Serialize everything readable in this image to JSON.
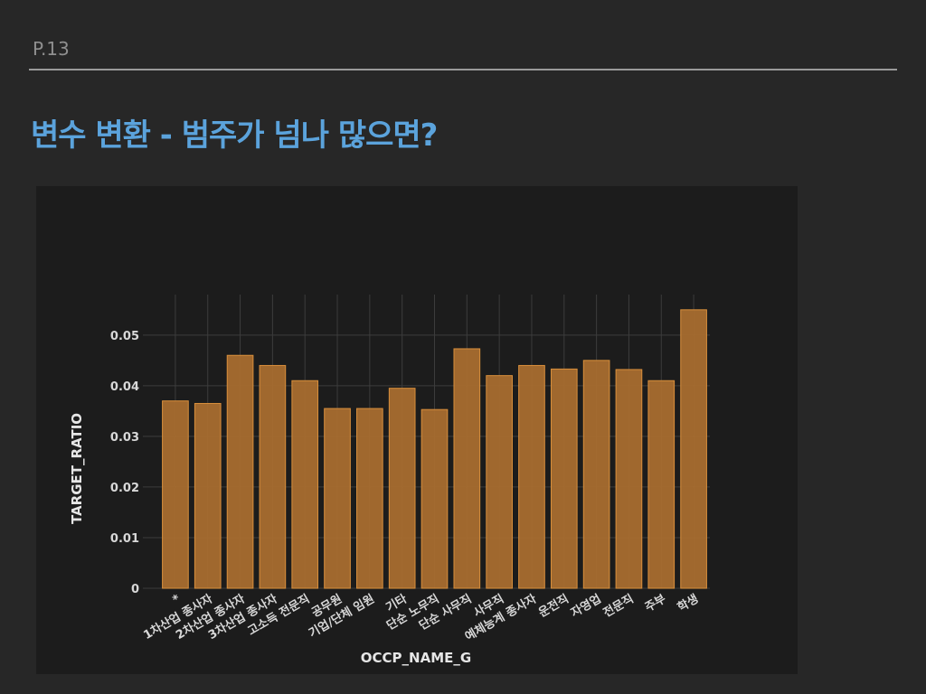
{
  "slide": {
    "page_number": "P.13",
    "title": "변수 변환 - 범주가 넘나 많으면?"
  },
  "chart_data": {
    "type": "bar",
    "xlabel": "OCCP_NAME_G",
    "ylabel": "TARGET_RATIO",
    "ylim": [
      0,
      0.058
    ],
    "yticks": [
      0,
      0.01,
      0.02,
      0.03,
      0.04,
      0.05
    ],
    "ytick_labels": [
      "0",
      "0.01",
      "0.02",
      "0.03",
      "0.04",
      "0.05"
    ],
    "grid": true,
    "categories": [
      "*",
      "1차산업 종사자",
      "2차산업 종사자",
      "3차산업 종사자",
      "고소득 전문직",
      "공무원",
      "기업/단체 임원",
      "기타",
      "단순 노무직",
      "단순 사무직",
      "사무직",
      "예체능계 종사자",
      "운전직",
      "자영업",
      "전문직",
      "주부",
      "학생"
    ],
    "values": [
      0.037,
      0.0365,
      0.046,
      0.044,
      0.041,
      0.0355,
      0.0355,
      0.0395,
      0.0353,
      0.0473,
      0.042,
      0.044,
      0.0433,
      0.045,
      0.0432,
      0.041,
      0.055
    ],
    "bar_color": "#a86d2f",
    "bar_edge_color": "#d98f3c"
  }
}
